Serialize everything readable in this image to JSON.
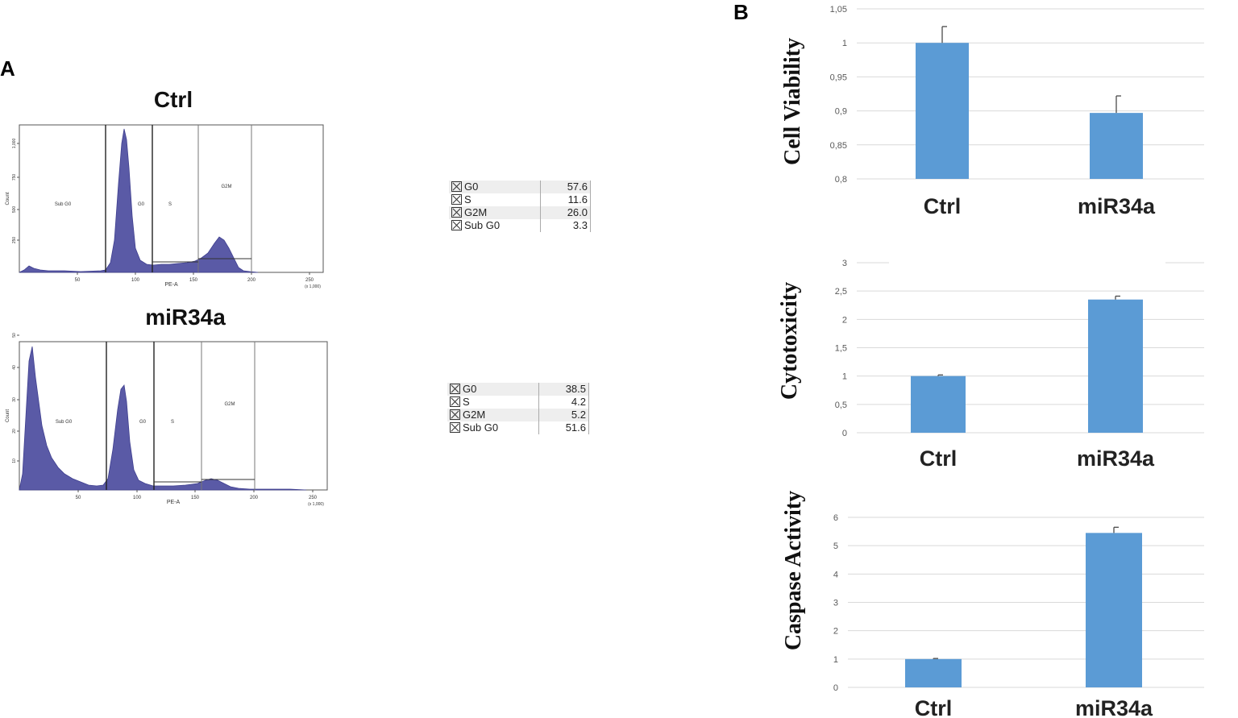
{
  "panels": {
    "a": "A",
    "b": "B"
  },
  "histograms": [
    {
      "title": "Ctrl",
      "xlabel": "PE-A",
      "ylabel": "Count",
      "x_ticks": [
        "50",
        "100",
        "150",
        "200",
        "250"
      ],
      "x_unit": "(x 1,000)",
      "y_ticks": [
        "250",
        "500",
        "750",
        "1,000"
      ],
      "gates": [
        "Sub G0",
        "G0",
        "S",
        "G2M"
      ],
      "stats": [
        {
          "label": "G0",
          "value": "57.6"
        },
        {
          "label": "S",
          "value": "11.6"
        },
        {
          "label": "G2M",
          "value": "26.0"
        },
        {
          "label": "Sub G0",
          "value": "3.3"
        }
      ]
    },
    {
      "title": "miR34a",
      "xlabel": "PE-A",
      "ylabel": "Count",
      "x_ticks": [
        "50",
        "100",
        "150",
        "200",
        "250"
      ],
      "x_unit": "(x 1,000)",
      "y_ticks": [
        "10",
        "20",
        "30",
        "40",
        "50"
      ],
      "gates": [
        "Sub G0",
        "G0",
        "S",
        "G2M"
      ],
      "stats": [
        {
          "label": "G0",
          "value": "38.5"
        },
        {
          "label": "S",
          "value": "4.2"
        },
        {
          "label": "G2M",
          "value": "5.2"
        },
        {
          "label": "Sub G0",
          "value": "51.6"
        }
      ]
    }
  ],
  "colors": {
    "bar": "#5b9bd5",
    "histogram": "#5a5aa6",
    "grid": "#d9d9d9"
  },
  "chart_data": [
    {
      "type": "bar",
      "categories": [
        "Ctrl",
        "miR34a"
      ],
      "values": [
        1.0,
        0.897
      ],
      "errors": [
        0.024,
        0.025
      ],
      "ylabel": "Cell Viability",
      "ylim": [
        0.8,
        1.05
      ],
      "y_ticks": [
        "0,8",
        "0,85",
        "0,9",
        "0,95",
        "1",
        "1,05"
      ]
    },
    {
      "type": "bar",
      "categories": [
        "Ctrl",
        "miR34a"
      ],
      "values": [
        1.0,
        2.35
      ],
      "errors": [
        0.02,
        0.06
      ],
      "ylabel": "Cytotoxicity",
      "ylim": [
        0,
        3
      ],
      "y_ticks": [
        "0",
        "0,5",
        "1",
        "1,5",
        "2",
        "2,5",
        "3"
      ]
    },
    {
      "type": "bar",
      "categories": [
        "Ctrl",
        "miR34a"
      ],
      "values": [
        1.0,
        5.45
      ],
      "errors": [
        0.02,
        0.2
      ],
      "ylabel": "Caspase Activity",
      "ylim": [
        0,
        6
      ],
      "y_ticks": [
        "0",
        "1",
        "2",
        "3",
        "4",
        "5",
        "6"
      ]
    }
  ]
}
